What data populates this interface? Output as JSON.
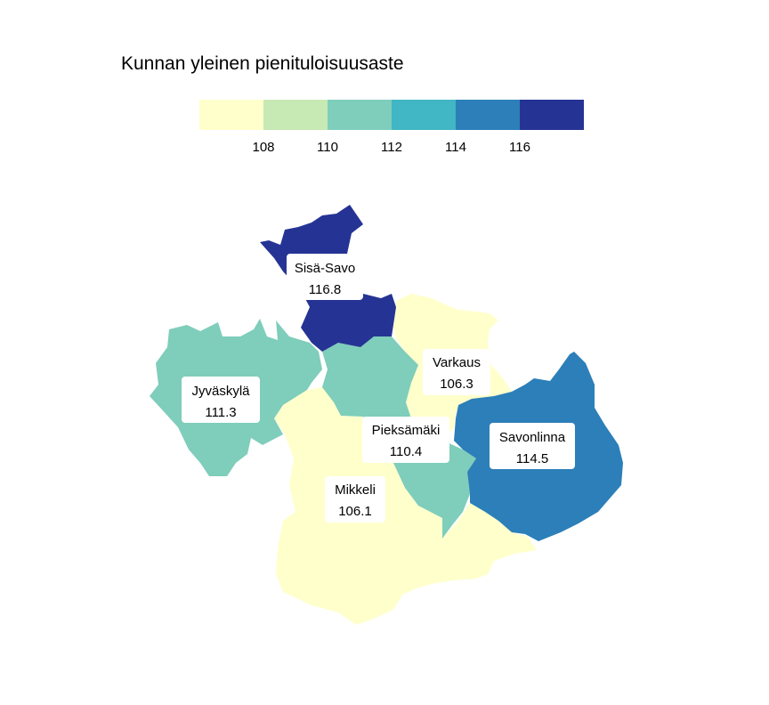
{
  "title": "Kunnan yleinen pienituloisuusaste",
  "legend": {
    "colors": [
      "#ffffcc",
      "#c7e9b4",
      "#7fcdbb",
      "#41b6c4",
      "#2c7fb8",
      "#253494"
    ],
    "ticks": [
      "108",
      "110",
      "112",
      "114",
      "116"
    ]
  },
  "regions": [
    {
      "name": "Sisä-Savo",
      "value": "116.8",
      "color": "#253494"
    },
    {
      "name": "Jyväskylä",
      "value": "111.3",
      "color": "#7fcdbb"
    },
    {
      "name": "Varkaus",
      "value": "106.3",
      "color": "#ffffcc"
    },
    {
      "name": "Pieksämäki",
      "value": "110.4",
      "color": "#7fcdbb"
    },
    {
      "name": "Savonlinna",
      "value": "114.5",
      "color": "#2c7fb8"
    },
    {
      "name": "Mikkeli",
      "value": "106.1",
      "color": "#ffffcc"
    }
  ]
}
